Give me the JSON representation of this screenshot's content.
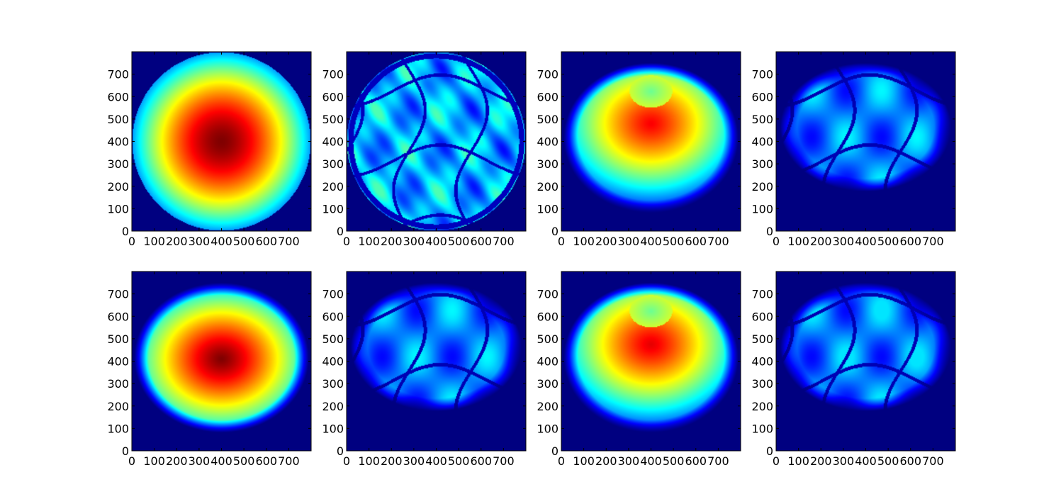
{
  "chart_data": [
    {
      "type": "heatmap",
      "colormap": "jet",
      "background_color": "#00007f",
      "xlim": [
        0,
        800
      ],
      "ylim": [
        0,
        800
      ],
      "xticks": [
        0,
        100,
        200,
        300,
        400,
        500,
        600,
        700
      ],
      "yticks": [
        0,
        100,
        200,
        300,
        400,
        500,
        600,
        700
      ],
      "pattern": "full-disk",
      "peak_center": [
        400,
        400
      ],
      "peak_level": 1.0
    },
    {
      "type": "heatmap",
      "colormap": "jet",
      "background_color": "#00007f",
      "xlim": [
        0,
        800
      ],
      "ylim": [
        0,
        800
      ],
      "xticks": [
        0,
        100,
        200,
        300,
        400,
        500,
        600,
        700
      ],
      "yticks": [
        0,
        100,
        200,
        300,
        400,
        500,
        600,
        700
      ],
      "pattern": "full-disk-structured",
      "peak_level": 0.45
    },
    {
      "type": "heatmap",
      "colormap": "jet",
      "background_color": "#00007f",
      "xlim": [
        0,
        800
      ],
      "ylim": [
        0,
        800
      ],
      "xticks": [
        0,
        100,
        200,
        300,
        400,
        500,
        600,
        700
      ],
      "yticks": [
        0,
        100,
        200,
        300,
        400,
        500,
        600,
        700
      ],
      "pattern": "dome-ring",
      "peak_center": [
        400,
        480
      ],
      "peak_level": 0.88
    },
    {
      "type": "heatmap",
      "colormap": "jet",
      "background_color": "#00007f",
      "xlim": [
        0,
        800
      ],
      "ylim": [
        0,
        800
      ],
      "xticks": [
        0,
        100,
        200,
        300,
        400,
        500,
        600,
        700
      ],
      "yticks": [
        0,
        100,
        200,
        300,
        400,
        500,
        600,
        700
      ],
      "pattern": "upper-structured",
      "peak_level": 0.38
    },
    {
      "type": "heatmap",
      "colormap": "jet",
      "background_color": "#00007f",
      "xlim": [
        0,
        800
      ],
      "ylim": [
        0,
        800
      ],
      "xticks": [
        0,
        100,
        200,
        300,
        400,
        500,
        600,
        700
      ],
      "yticks": [
        0,
        100,
        200,
        300,
        400,
        500,
        600,
        700
      ],
      "pattern": "dome",
      "peak_center": [
        400,
        410
      ],
      "peak_level": 1.0
    },
    {
      "type": "heatmap",
      "colormap": "jet",
      "background_color": "#00007f",
      "xlim": [
        0,
        800
      ],
      "ylim": [
        0,
        800
      ],
      "xticks": [
        0,
        100,
        200,
        300,
        400,
        500,
        600,
        700
      ],
      "yticks": [
        0,
        100,
        200,
        300,
        400,
        500,
        600,
        700
      ],
      "pattern": "upper-structured",
      "peak_level": 0.45
    },
    {
      "type": "heatmap",
      "colormap": "jet",
      "background_color": "#00007f",
      "xlim": [
        0,
        800
      ],
      "ylim": [
        0,
        800
      ],
      "xticks": [
        0,
        100,
        200,
        300,
        400,
        500,
        600,
        700
      ],
      "yticks": [
        0,
        100,
        200,
        300,
        400,
        500,
        600,
        700
      ],
      "pattern": "dome-ring",
      "peak_center": [
        400,
        475
      ],
      "peak_level": 0.9
    },
    {
      "type": "heatmap",
      "colormap": "jet",
      "background_color": "#00007f",
      "xlim": [
        0,
        800
      ],
      "ylim": [
        0,
        800
      ],
      "xticks": [
        0,
        100,
        200,
        300,
        400,
        500,
        600,
        700
      ],
      "yticks": [
        0,
        100,
        200,
        300,
        400,
        500,
        600,
        700
      ],
      "pattern": "upper-structured",
      "peak_level": 0.35
    }
  ]
}
